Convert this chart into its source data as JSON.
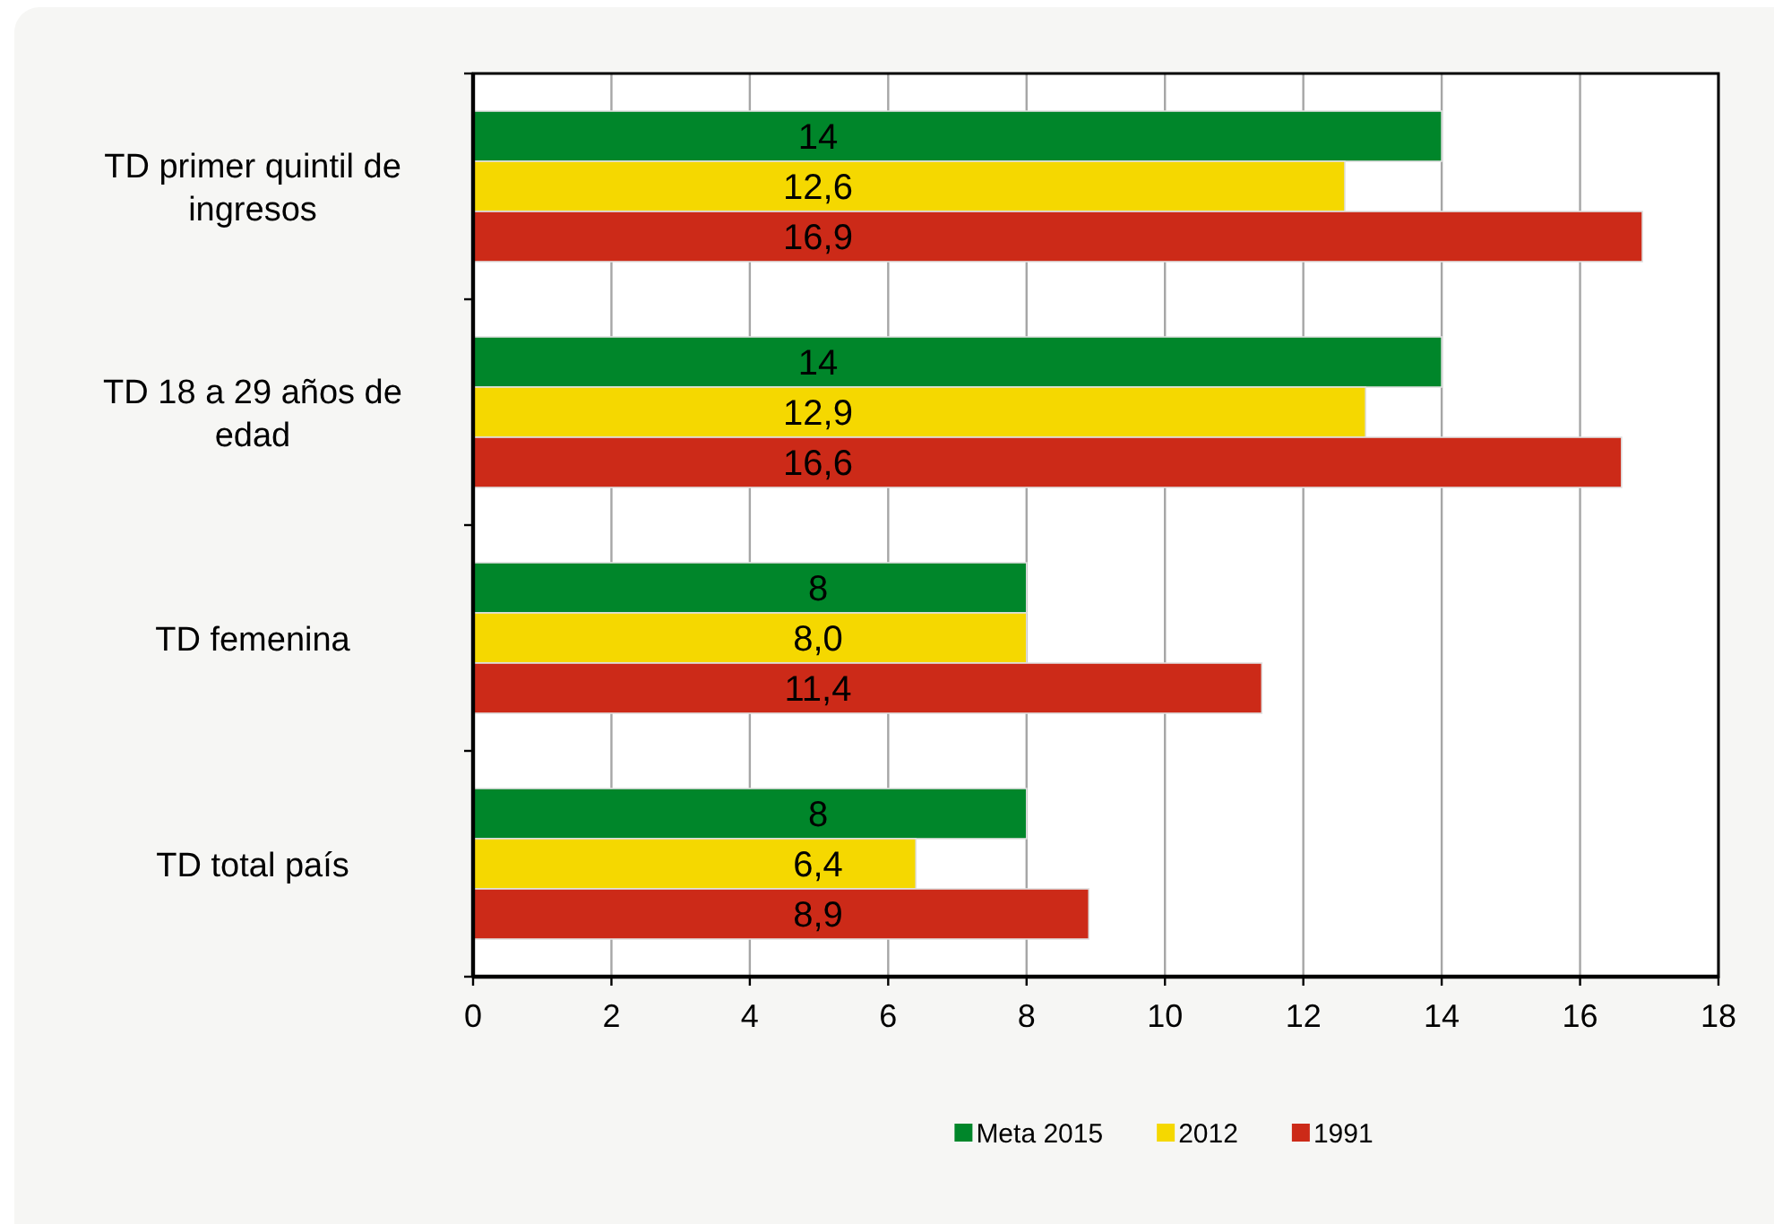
{
  "chart_data": {
    "type": "bar",
    "orientation": "horizontal",
    "categories": [
      "TD primer quintil de ingresos",
      "TD 18 a 29 años de edad",
      "TD femenina",
      "TD total país"
    ],
    "series": [
      {
        "name": "Meta 2015",
        "color": "#00862a",
        "values": [
          14,
          14,
          8,
          8
        ],
        "value_labels": [
          "14",
          "14",
          "8",
          "8"
        ]
      },
      {
        "name": "2012",
        "color": "#f5d800",
        "values": [
          12.6,
          12.9,
          8.0,
          6.4
        ],
        "value_labels": [
          "12,6",
          "12,9",
          "8,0",
          "6,4"
        ]
      },
      {
        "name": "1991",
        "color": "#cc2a18",
        "values": [
          16.9,
          16.6,
          11.4,
          8.9
        ],
        "value_labels": [
          "16,9",
          "16,6",
          "11,4",
          "8,9"
        ]
      }
    ],
    "xlim": [
      0,
      18
    ],
    "xticks": [
      0,
      2,
      4,
      6,
      8,
      10,
      12,
      14,
      16,
      18
    ],
    "grid": "x",
    "legend": "bottom"
  }
}
